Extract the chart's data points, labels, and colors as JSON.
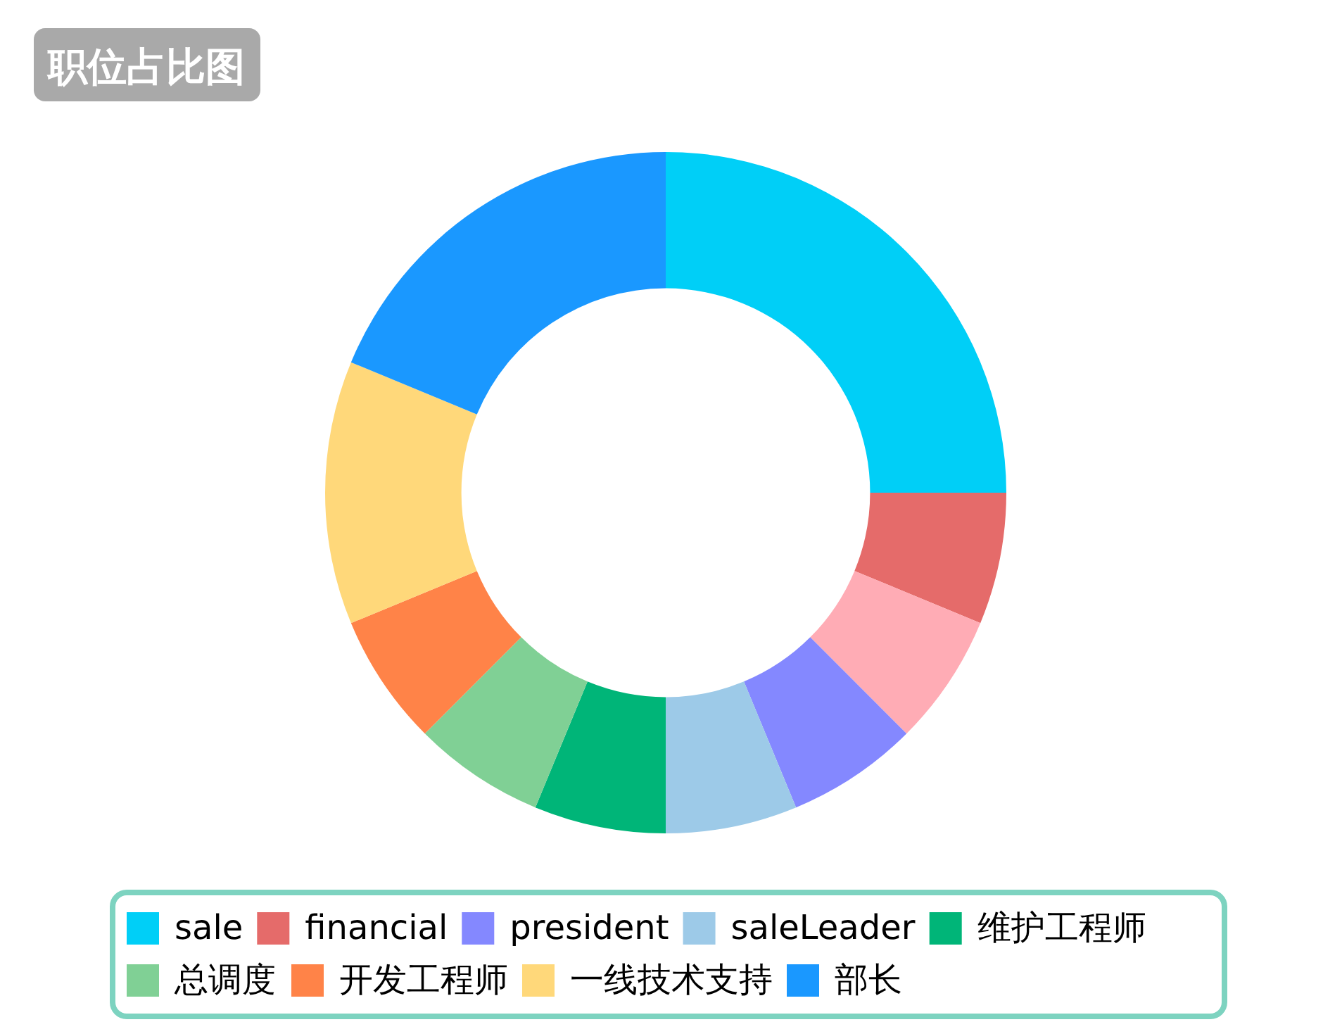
{
  "chart_data": {
    "type": "donut",
    "title": "职位占比图",
    "categories": [
      "sale",
      "financial",
      null,
      "president",
      "saleLeader",
      "维护工程师",
      "总调度",
      "开发工程师",
      "一线技术支持",
      "部长"
    ],
    "values": [
      25,
      6.25,
      6.25,
      6.25,
      6.25,
      6.25,
      6.25,
      6.25,
      12.5,
      18.75
    ],
    "colors": [
      "#00cff7",
      "#e56b6a",
      "#ffacb5",
      "#8488ff",
      "#9dcae8",
      "#00b578",
      "#80d095",
      "#ff8348",
      "#ffd87a",
      "#1a98ff"
    ],
    "legend": "bottom"
  }
}
